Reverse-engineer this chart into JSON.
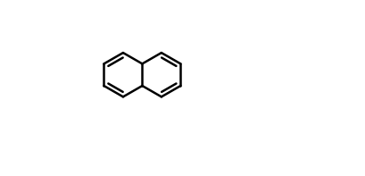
{
  "bg_color": "#ffffff",
  "bond_color": "#000000",
  "N_color": "#cc8800",
  "text_color": "#000000",
  "label_color": "#1a1aff",
  "fig_width": 4.09,
  "fig_height": 1.97,
  "dpi": 100
}
